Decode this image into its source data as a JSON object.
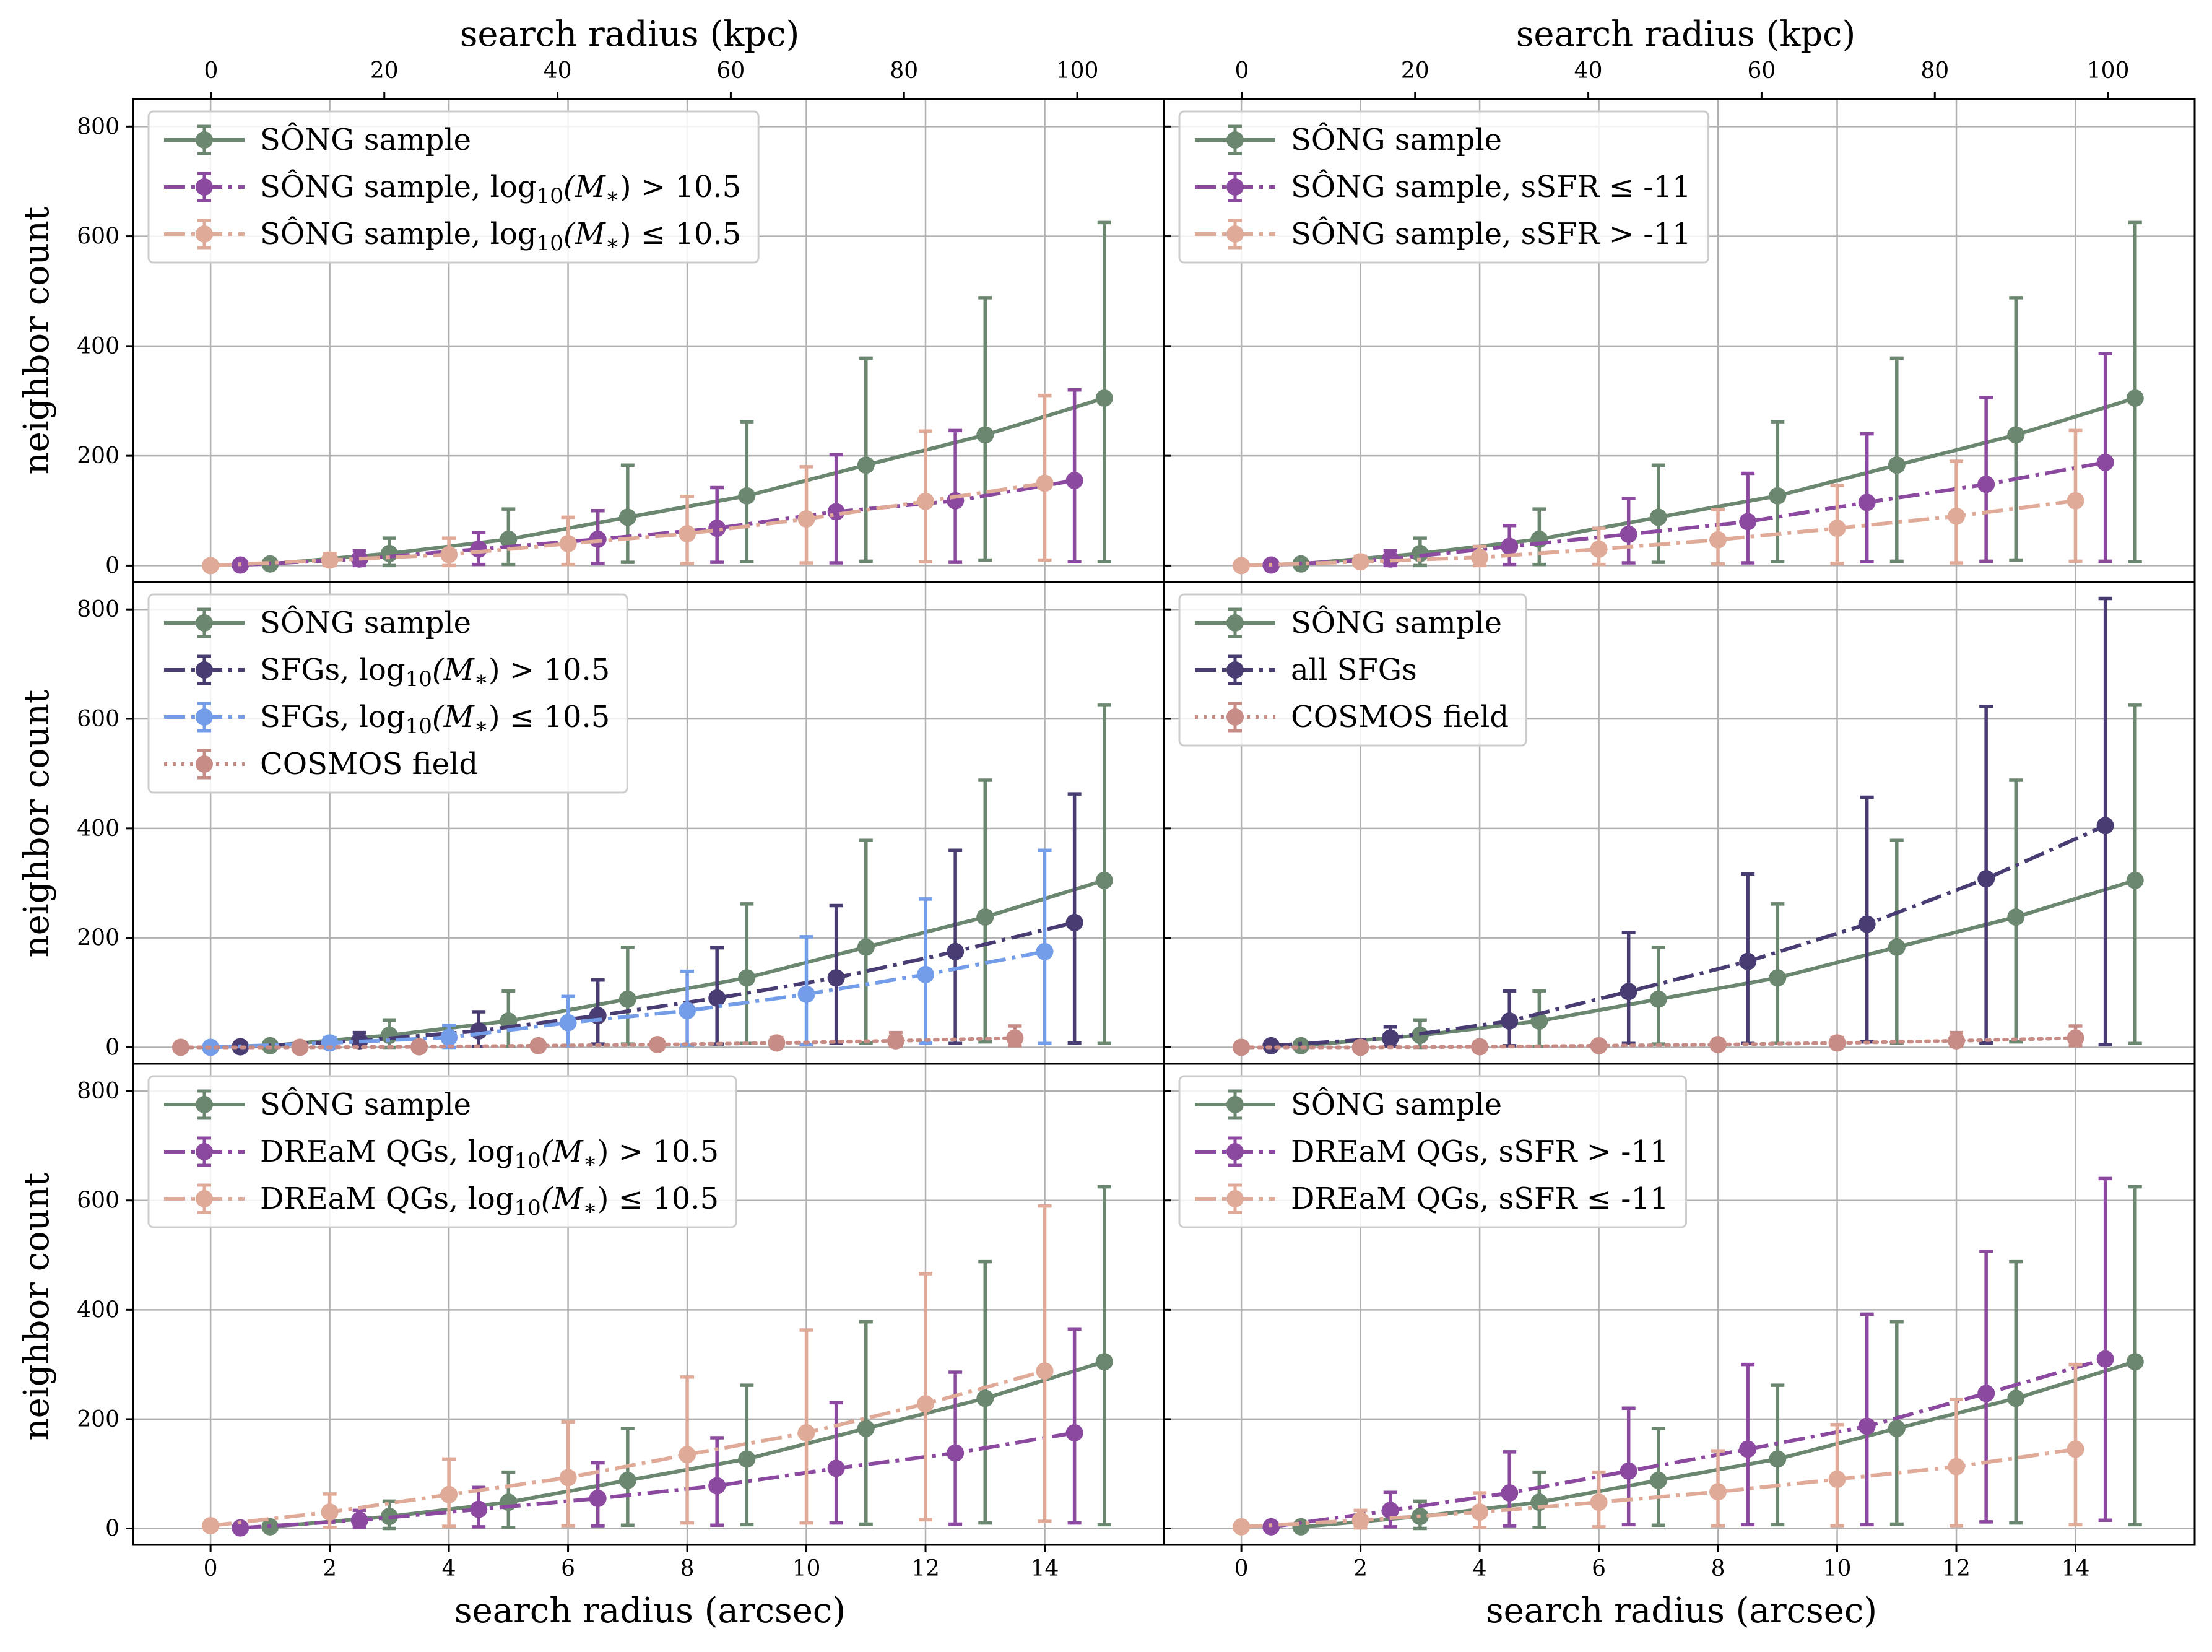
{
  "colors": {
    "song": "#6b8770",
    "purple": "#8b4aa0",
    "peach": "#e0aa98",
    "navy": "#483c72",
    "blue": "#739de8",
    "rose": "#c88c86",
    "grid": "#b0b0b0"
  },
  "labels": {
    "top_xlabel": "search radius (kpc)",
    "bottom_xlabel": "search radius (arcsec)",
    "ylabel": "neighbor count"
  },
  "axes": {
    "arcsec_ticks": [
      "0",
      "2",
      "4",
      "6",
      "8",
      "10",
      "12",
      "14"
    ],
    "kpc_ticks": [
      "0",
      "20",
      "40",
      "60",
      "80",
      "100"
    ],
    "y_ticks": [
      "0",
      "200",
      "400",
      "600",
      "800"
    ]
  },
  "chart_data": [
    {
      "type": "line",
      "panel": "top-left",
      "x_range": [
        -1.3,
        16
      ],
      "x_top_range": [
        -9,
        110
      ],
      "ylim": [
        -30,
        850
      ],
      "legend": "upper left",
      "series": [
        {
          "name": "SÔNG sample",
          "color": "#6b8770",
          "style": "solid",
          "x": [
            1,
            3,
            5,
            7,
            9,
            11,
            13,
            15
          ],
          "y": [
            3,
            22,
            48,
            88,
            127,
            183,
            238,
            305
          ],
          "err_low": [
            3,
            22,
            46,
            82,
            120,
            175,
            228,
            298
          ],
          "err_high": [
            4,
            28,
            55,
            95,
            135,
            195,
            250,
            320
          ]
        },
        {
          "name": "SÔNG sample, log10(M*) > 10.5",
          "color": "#8b4aa0",
          "style": "dashdot",
          "x": [
            0.5,
            2.5,
            4.5,
            6.5,
            8.5,
            10.5,
            12.5,
            14.5
          ],
          "y": [
            1,
            12,
            30,
            48,
            68,
            98,
            118,
            155
          ],
          "err_low": [
            1,
            12,
            28,
            44,
            62,
            93,
            112,
            148
          ],
          "err_high": [
            2,
            15,
            30,
            52,
            74,
            104,
            128,
            165
          ]
        },
        {
          "name": "SÔNG sample, log10(M*) ≤ 10.5",
          "color": "#e0aa98",
          "style": "dashdot",
          "x": [
            0,
            2,
            4,
            6,
            8,
            10,
            12,
            14
          ],
          "y": [
            0,
            10,
            20,
            40,
            58,
            85,
            117,
            150
          ],
          "err_low": [
            0,
            10,
            20,
            38,
            54,
            80,
            110,
            140
          ],
          "err_high": [
            0,
            12,
            30,
            48,
            68,
            95,
            128,
            160
          ]
        }
      ],
      "legend_entries": [
        {
          "label": "SÔNG sample"
        },
        {
          "label": "SÔNG sample, ",
          "sub_mass": true,
          "tail": " > 10.5"
        },
        {
          "label": "SÔNG sample, ",
          "sub_mass": true,
          "tail": " ≤ 10.5"
        }
      ]
    },
    {
      "type": "line",
      "panel": "top-right",
      "x_range": [
        -1.3,
        16
      ],
      "x_top_range": [
        -9,
        110
      ],
      "ylim": [
        -30,
        850
      ],
      "legend": "upper left",
      "series": [
        {
          "name": "SÔNG sample",
          "color": "#6b8770",
          "style": "solid",
          "x": [
            1,
            3,
            5,
            7,
            9,
            11,
            13,
            15
          ],
          "y": [
            3,
            22,
            48,
            88,
            127,
            183,
            238,
            305
          ],
          "err_low": [
            3,
            22,
            46,
            82,
            120,
            175,
            228,
            298
          ],
          "err_high": [
            4,
            28,
            55,
            95,
            135,
            195,
            250,
            320
          ]
        },
        {
          "name": "SÔNG sample, sSFR ≤ -11",
          "color": "#8b4aa0",
          "style": "dashdot",
          "x": [
            0.5,
            2.5,
            4.5,
            6.5,
            8.5,
            10.5,
            12.5,
            14.5
          ],
          "y": [
            1,
            12,
            35,
            57,
            80,
            115,
            148,
            188
          ],
          "err_low": [
            1,
            12,
            33,
            52,
            75,
            108,
            140,
            180
          ],
          "err_high": [
            2,
            15,
            38,
            65,
            88,
            125,
            158,
            198
          ]
        },
        {
          "name": "SÔNG sample, sSFR > -11",
          "color": "#e0aa98",
          "style": "dashdot",
          "x": [
            0,
            2,
            4,
            6,
            8,
            10,
            12,
            14
          ],
          "y": [
            0,
            7,
            15,
            30,
            47,
            68,
            90,
            118
          ],
          "err_low": [
            0,
            7,
            15,
            28,
            44,
            64,
            85,
            110
          ],
          "err_high": [
            0,
            10,
            20,
            38,
            55,
            78,
            100,
            128
          ]
        }
      ],
      "legend_entries": [
        {
          "label": "SÔNG sample"
        },
        {
          "label": "SÔNG sample, sSFR ≤ -11"
        },
        {
          "label": "SÔNG sample, sSFR > -11"
        }
      ]
    },
    {
      "type": "line",
      "panel": "middle-left",
      "x_range": [
        -1.3,
        16
      ],
      "ylim": [
        -30,
        850
      ],
      "legend": "upper left",
      "series": [
        {
          "name": "SÔNG sample",
          "color": "#6b8770",
          "style": "solid",
          "x": [
            1,
            3,
            5,
            7,
            9,
            11,
            13,
            15
          ],
          "y": [
            3,
            22,
            48,
            88,
            127,
            183,
            238,
            305
          ],
          "err_low": [
            3,
            22,
            46,
            82,
            120,
            175,
            228,
            298
          ],
          "err_high": [
            4,
            28,
            55,
            95,
            135,
            195,
            250,
            320
          ]
        },
        {
          "name": "SFGs, log10(M*) > 10.5",
          "color": "#483c72",
          "style": "dashdot",
          "x": [
            0.5,
            2.5,
            4.5,
            6.5,
            8.5,
            10.5,
            12.5,
            14.5
          ],
          "y": [
            1,
            12,
            30,
            58,
            90,
            127,
            175,
            228
          ],
          "err_low": [
            1,
            10,
            28,
            52,
            84,
            120,
            168,
            220
          ],
          "err_high": [
            2,
            15,
            35,
            65,
            92,
            132,
            185,
            235
          ]
        },
        {
          "name": "SFGs, log10(M*) ≤ 10.5",
          "color": "#739de8",
          "style": "dashdot",
          "x": [
            0,
            2,
            4,
            6,
            8,
            10,
            12,
            14
          ],
          "y": [
            0,
            8,
            18,
            45,
            67,
            97,
            133,
            175
          ],
          "err_low": [
            0,
            8,
            18,
            42,
            63,
            92,
            125,
            168
          ],
          "err_high": [
            0,
            10,
            22,
            48,
            72,
            105,
            138,
            185
          ]
        },
        {
          "name": "COSMOS field",
          "color": "#c88c86",
          "style": "dotted",
          "x": [
            -0.5,
            1.5,
            3.5,
            5.5,
            7.5,
            9.5,
            11.5,
            13.5
          ],
          "y": [
            0,
            0,
            1,
            3,
            5,
            8,
            12,
            17
          ],
          "err_low": [
            0,
            0,
            1,
            3,
            5,
            7,
            10,
            14
          ],
          "err_high": [
            0,
            0,
            2,
            4,
            6,
            10,
            15,
            22
          ]
        }
      ],
      "legend_entries": [
        {
          "label": "SÔNG sample"
        },
        {
          "label": "SFGs, ",
          "sub_mass": true,
          "tail": " > 10.5"
        },
        {
          "label": "SFGs, ",
          "sub_mass": true,
          "tail": " ≤ 10.5"
        },
        {
          "label": "COSMOS field"
        }
      ]
    },
    {
      "type": "line",
      "panel": "middle-right",
      "x_range": [
        -1.3,
        16
      ],
      "ylim": [
        -30,
        850
      ],
      "legend": "upper left",
      "series": [
        {
          "name": "SÔNG sample",
          "color": "#6b8770",
          "style": "solid",
          "x": [
            1,
            3,
            5,
            7,
            9,
            11,
            13,
            15
          ],
          "y": [
            3,
            22,
            48,
            88,
            127,
            183,
            238,
            305
          ],
          "err_low": [
            3,
            22,
            46,
            82,
            120,
            175,
            228,
            298
          ],
          "err_high": [
            4,
            28,
            55,
            95,
            135,
            195,
            250,
            320
          ]
        },
        {
          "name": "all SFGs",
          "color": "#483c72",
          "style": "dashdot",
          "x": [
            0.5,
            2.5,
            4.5,
            6.5,
            8.5,
            10.5,
            12.5,
            14.5
          ],
          "y": [
            3,
            17,
            48,
            102,
            157,
            225,
            308,
            405
          ],
          "err_low": [
            3,
            15,
            45,
            95,
            150,
            215,
            300,
            400
          ],
          "err_high": [
            5,
            20,
            55,
            108,
            160,
            232,
            315,
            415
          ]
        },
        {
          "name": "COSMOS field",
          "color": "#c88c86",
          "style": "dotted",
          "x": [
            0,
            2,
            4,
            6,
            8,
            10,
            12,
            14
          ],
          "y": [
            0,
            0,
            1,
            3,
            5,
            8,
            12,
            17
          ],
          "err_low": [
            0,
            0,
            1,
            3,
            5,
            7,
            10,
            14
          ],
          "err_high": [
            0,
            0,
            2,
            4,
            6,
            10,
            15,
            22
          ]
        }
      ],
      "legend_entries": [
        {
          "label": "SÔNG sample"
        },
        {
          "label": "all SFGs"
        },
        {
          "label": "COSMOS field"
        }
      ]
    },
    {
      "type": "line",
      "panel": "bottom-left",
      "x_range": [
        -1.3,
        16
      ],
      "ylim": [
        -30,
        850
      ],
      "legend": "upper left",
      "series": [
        {
          "name": "SÔNG sample",
          "color": "#6b8770",
          "style": "solid",
          "x": [
            1,
            3,
            5,
            7,
            9,
            11,
            13,
            15
          ],
          "y": [
            3,
            22,
            48,
            88,
            127,
            183,
            238,
            305
          ],
          "err_low": [
            3,
            22,
            46,
            82,
            120,
            175,
            228,
            298
          ],
          "err_high": [
            4,
            28,
            55,
            95,
            135,
            195,
            250,
            320
          ]
        },
        {
          "name": "DREaM QGs, log10(M*) > 10.5",
          "color": "#8b4aa0",
          "style": "dashdot",
          "x": [
            0.5,
            2.5,
            4.5,
            6.5,
            8.5,
            10.5,
            12.5,
            14.5
          ],
          "y": [
            1,
            15,
            35,
            55,
            78,
            110,
            138,
            175
          ],
          "err_low": [
            1,
            13,
            32,
            50,
            72,
            100,
            130,
            165
          ],
          "err_high": [
            2,
            18,
            40,
            65,
            88,
            120,
            148,
            190
          ]
        },
        {
          "name": "DREaM QGs, log10(M*) ≤ 10.5",
          "color": "#e0aa98",
          "style": "dashdot",
          "x": [
            0,
            2,
            4,
            6,
            8,
            10,
            12,
            14
          ],
          "y": [
            5,
            30,
            62,
            93,
            135,
            175,
            228,
            288
          ],
          "err_low": [
            5,
            28,
            58,
            88,
            125,
            165,
            212,
            275
          ],
          "err_high": [
            5,
            33,
            65,
            102,
            142,
            188,
            238,
            302
          ]
        }
      ],
      "legend_entries": [
        {
          "label": "SÔNG sample"
        },
        {
          "label": "DREaM QGs, ",
          "sub_mass": true,
          "tail": " > 10.5"
        },
        {
          "label": "DREaM QGs, ",
          "sub_mass": true,
          "tail": " ≤ 10.5"
        }
      ]
    },
    {
      "type": "line",
      "panel": "bottom-right",
      "x_range": [
        -1.3,
        16
      ],
      "ylim": [
        -30,
        850
      ],
      "legend": "upper left",
      "series": [
        {
          "name": "SÔNG sample",
          "color": "#6b8770",
          "style": "solid",
          "x": [
            1,
            3,
            5,
            7,
            9,
            11,
            13,
            15
          ],
          "y": [
            3,
            22,
            48,
            88,
            127,
            183,
            238,
            305
          ],
          "err_low": [
            3,
            22,
            46,
            82,
            120,
            175,
            228,
            298
          ],
          "err_high": [
            4,
            28,
            55,
            95,
            135,
            195,
            250,
            320
          ]
        },
        {
          "name": "DREaM QGs, sSFR > -11",
          "color": "#8b4aa0",
          "style": "dashdot",
          "x": [
            0.5,
            2.5,
            4.5,
            6.5,
            8.5,
            10.5,
            12.5,
            14.5
          ],
          "y": [
            3,
            33,
            65,
            105,
            145,
            187,
            247,
            310
          ],
          "err_low": [
            3,
            30,
            60,
            98,
            138,
            180,
            235,
            295
          ],
          "err_high": [
            5,
            33,
            75,
            115,
            155,
            205,
            260,
            330
          ]
        },
        {
          "name": "DREaM QGs, sSFR ≤ -11",
          "color": "#e0aa98",
          "style": "dashdot",
          "x": [
            0,
            2,
            4,
            6,
            8,
            10,
            12,
            14
          ],
          "y": [
            3,
            15,
            30,
            48,
            67,
            90,
            113,
            145
          ],
          "err_low": [
            3,
            14,
            28,
            45,
            62,
            85,
            108,
            138
          ],
          "err_high": [
            3,
            18,
            35,
            55,
            75,
            100,
            123,
            155
          ]
        }
      ],
      "legend_entries": [
        {
          "label": "SÔNG sample"
        },
        {
          "label": "DREaM QGs, sSFR > -11"
        },
        {
          "label": "DREaM QGs, sSFR ≤ -11"
        }
      ]
    }
  ],
  "legend_math": {
    "base": "log",
    "sub": "10",
    "arg": "(M",
    "star": "∗",
    ")": ")"
  }
}
